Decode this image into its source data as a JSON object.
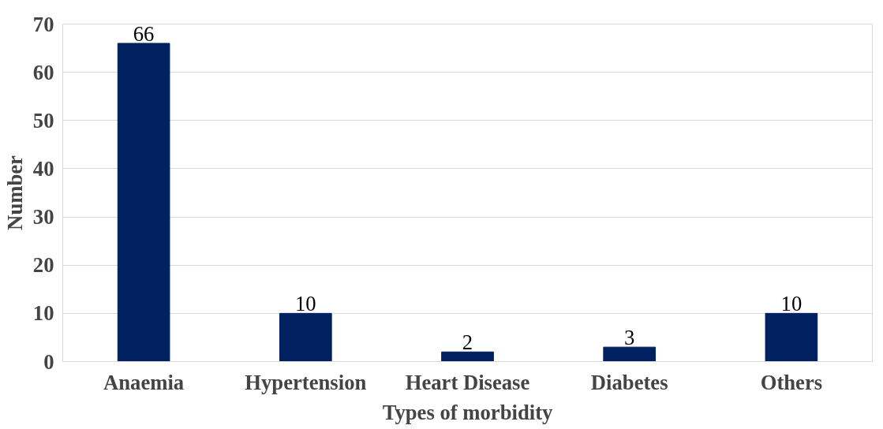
{
  "chart_data": {
    "type": "bar",
    "xlabel": "Types of morbidity",
    "ylabel": "Number",
    "categories": [
      "Anaemia",
      "Hypertension",
      "Heart Disease",
      "Diabetes",
      "Others"
    ],
    "values": [
      66,
      10,
      2,
      3,
      10
    ],
    "color": "#002060",
    "ylim": [
      0,
      70
    ],
    "yticks": [
      0,
      10,
      20,
      30,
      40,
      50,
      60,
      70
    ],
    "grid": "y",
    "data_labels": true
  }
}
